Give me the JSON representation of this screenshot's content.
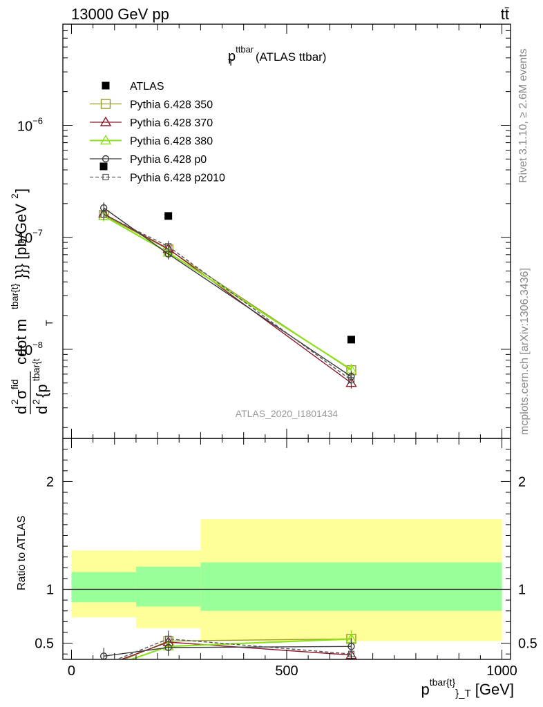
{
  "header": {
    "left": "13000 GeV pp",
    "right": "tt̄"
  },
  "side_labels": {
    "rivet": "Rivet 3.1.10, ≥ 2.6M events",
    "mcplots": "mcplots.cern.ch [arXiv:1306.3436]"
  },
  "main_title": {
    "p": "p",
    "sup": "ttbar",
    "sub": "T",
    "rest": " (ATLAS ttbar)"
  },
  "watermark": "ATLAS_2020_I1801434",
  "ylabel_main": "d²σ^fid / d²{p_T^{tbar{t}}} cdot m^{tbar{t}}}} [pb/GeV²]",
  "ylabel_parts": {
    "d1": "d",
    "d1sup": "2",
    "sigma": "σ",
    "sigsup": "fid",
    "d2": "d",
    "d2sup": "2",
    "pp": "{p",
    "ppsup": "tbar{t",
    "ppsub": "T",
    "cdot": "cdot m",
    "csup": "tbar{t}",
    "tail": "}}} [pb/GeV",
    "tailsup": "2",
    "close": "]"
  },
  "ylabel_ratio": "Ratio to ATLAS",
  "xlabel": {
    "p": "p",
    "sup": "tbar{t}",
    "sub": "}_T",
    "unit": " [GeV]"
  },
  "chart_data": [
    {
      "type": "scatter",
      "panel": "main",
      "title": "p_T^{ttbar} (ATLAS ttbar)",
      "xlim": [
        -20,
        1020
      ],
      "ylim": [
        1.6e-09,
        8e-06
      ],
      "log_y": true,
      "y_ticks": [
        {
          "value": 1e-06,
          "base": "10",
          "exp": "−6"
        },
        {
          "value": 1e-07,
          "base": "10",
          "exp": "−7"
        },
        {
          "value": 1e-08,
          "base": "10",
          "exp": "−8"
        }
      ],
      "legend_position": "top-left",
      "series": [
        {
          "name": "ATLAS",
          "marker": "filled-square",
          "color": "#000000",
          "points": [
            {
              "x": 225,
              "y": 1.55e-07
            },
            {
              "x": 650,
              "y": 1.22e-08
            }
          ]
        },
        {
          "name": "Pythia 6.428 350",
          "marker": "open-square",
          "color": "#9a9a2a",
          "dash": false,
          "points": [
            {
              "x": 75,
              "y": 1.58e-07
            },
            {
              "x": 225,
              "y": 7.8e-08
            },
            {
              "x": 650,
              "y": 6.5e-09
            }
          ]
        },
        {
          "name": "Pythia 6.428 370",
          "marker": "open-triangle",
          "color": "#8b1a2b",
          "dash": false,
          "points": [
            {
              "x": 75,
              "y": 1.62e-07
            },
            {
              "x": 225,
              "y": 7.9e-08
            },
            {
              "x": 650,
              "y": 5e-09
            }
          ]
        },
        {
          "name": "Pythia 6.428 380",
          "marker": "open-triangle",
          "color": "#8ee01e",
          "dash": false,
          "points": [
            {
              "x": 75,
              "y": 1.55e-07
            },
            {
              "x": 225,
              "y": 7.3e-08
            },
            {
              "x": 650,
              "y": 6.6e-09
            }
          ]
        },
        {
          "name": "Pythia 6.428 p0",
          "marker": "open-circle",
          "color": "#3a3a3a",
          "dash": false,
          "points": [
            {
              "x": 75,
              "y": 1.83e-07
            },
            {
              "x": 225,
              "y": 7.1e-08
            },
            {
              "x": 650,
              "y": 5.7e-09
            }
          ]
        },
        {
          "name": "Pythia 6.428 p2010",
          "marker": "open-square-small",
          "color": "#555555",
          "dash": true,
          "points": [
            {
              "x": 75,
              "y": 1.6e-07
            },
            {
              "x": 225,
              "y": 8.3e-08
            },
            {
              "x": 650,
              "y": 5.3e-09
            }
          ]
        }
      ]
    },
    {
      "type": "line",
      "panel": "ratio",
      "ylabel": "Ratio to ATLAS",
      "xlabel": "p_T^{tbar{t}} [GeV]",
      "xlim": [
        -20,
        1020
      ],
      "ylim": [
        0.35,
        2.4
      ],
      "x_ticks": [
        0,
        500,
        1000
      ],
      "y_ticks": [
        0.5,
        1,
        2
      ],
      "bands": [
        {
          "xlo": 0,
          "xhi": 150,
          "yellow": [
            0.74,
            1.36
          ],
          "green": [
            0.88,
            1.16
          ]
        },
        {
          "xlo": 150,
          "xhi": 300,
          "yellow": [
            0.64,
            1.36
          ],
          "green": [
            0.84,
            1.21
          ]
        },
        {
          "xlo": 300,
          "xhi": 1000,
          "yellow": [
            0.52,
            1.65
          ],
          "green": [
            0.8,
            1.25
          ]
        }
      ],
      "series": [
        {
          "name": "Pythia 6.428 350",
          "points": [
            {
              "x": 75,
              "y": 0.27
            },
            {
              "x": 225,
              "y": 0.52
            },
            {
              "x": 650,
              "y": 0.54
            }
          ]
        },
        {
          "name": "Pythia 6.428 370",
          "points": [
            {
              "x": 75,
              "y": 0.29
            },
            {
              "x": 225,
              "y": 0.51
            },
            {
              "x": 650,
              "y": 0.39
            }
          ]
        },
        {
          "name": "Pythia 6.428 380",
          "points": [
            {
              "x": 75,
              "y": 0.26
            },
            {
              "x": 225,
              "y": 0.47
            },
            {
              "x": 650,
              "y": 0.54
            }
          ]
        },
        {
          "name": "Pythia 6.428 p0",
          "points": [
            {
              "x": 75,
              "y": 0.38
            },
            {
              "x": 225,
              "y": 0.46
            },
            {
              "x": 650,
              "y": 0.47
            }
          ]
        },
        {
          "name": "Pythia 6.428 p2010",
          "points": [
            {
              "x": 75,
              "y": 0.3
            },
            {
              "x": 225,
              "y": 0.54
            },
            {
              "x": 650,
              "y": 0.4
            }
          ]
        }
      ]
    }
  ]
}
